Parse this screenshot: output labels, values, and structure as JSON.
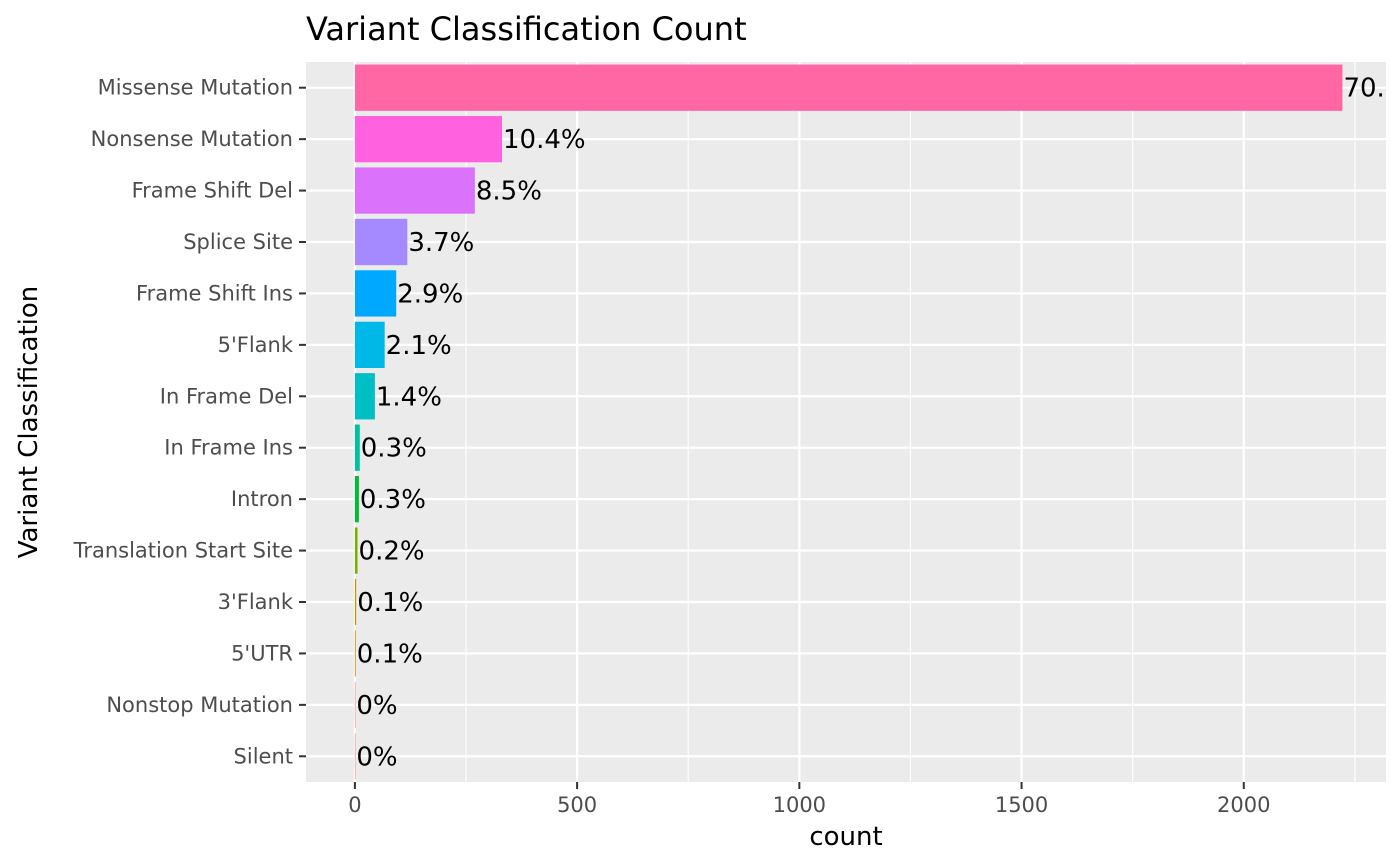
{
  "chart_data": {
    "type": "bar",
    "orientation": "horizontal",
    "title": "Variant Classification Count",
    "xlabel": "count",
    "ylabel": "Variant Classification",
    "xlim": [
      -110,
      2320
    ],
    "xticks": [
      0,
      500,
      1000,
      1500,
      2000
    ],
    "grid": true,
    "legend": "none",
    "categories": [
      "Missense Mutation",
      "Nonsense Mutation",
      "Frame Shift Del",
      "Splice Site",
      "Frame Shift Ins",
      "5'Flank",
      "In Frame Del",
      "In Frame Ins",
      "Intron",
      "Translation Start Site",
      "3'Flank",
      "5'UTR",
      "Nonstop Mutation",
      "Silent"
    ],
    "values": [
      2222,
      331,
      270,
      118,
      93,
      67,
      45,
      11,
      9,
      6,
      3,
      2,
      1,
      1
    ],
    "labels": [
      "70.",
      "10.4%",
      "8.5%",
      "3.7%",
      "2.9%",
      "2.1%",
      "1.4%",
      "0.3%",
      "0.3%",
      "0.2%",
      "0.1%",
      "0.1%",
      "0%",
      "0%"
    ],
    "colors": [
      "#FF67A4",
      "#FF61DF",
      "#DB72FB",
      "#A58AFF",
      "#00A9FF",
      "#00B8E7",
      "#00BFC4",
      "#00C19A",
      "#00BA38",
      "#7CAE00",
      "#C99800",
      "#E68613",
      "#F8766D",
      "#F8766D"
    ]
  }
}
